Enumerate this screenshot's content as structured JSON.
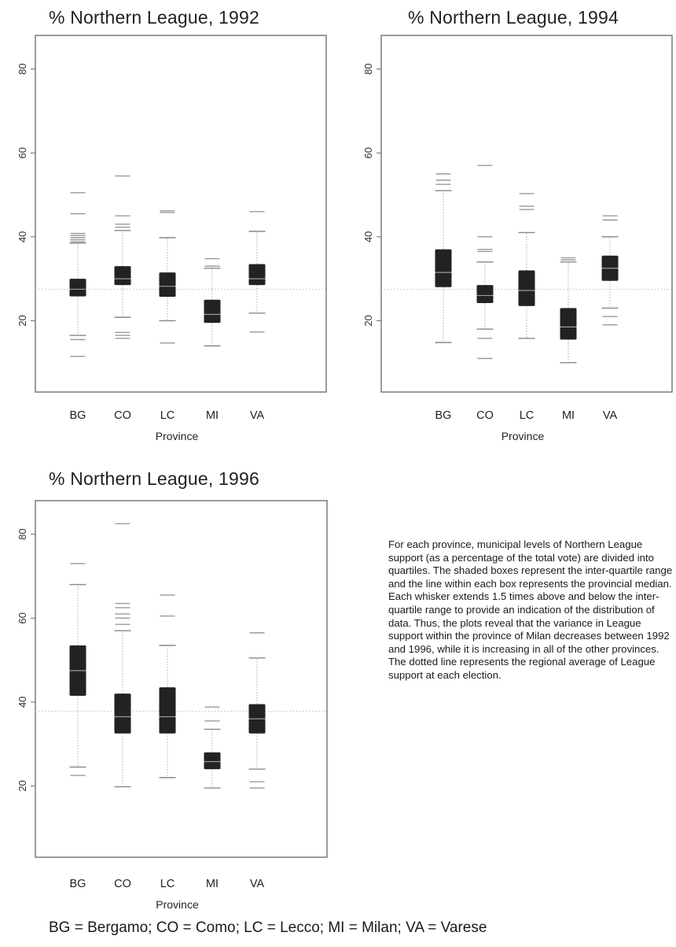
{
  "chart_data": [
    {
      "type": "boxplot",
      "title": "% Northern League, 1992",
      "xlabel": "Province",
      "ylabel": "",
      "ylim": [
        3,
        88
      ],
      "yticks": [
        "20",
        "40",
        "60",
        "80"
      ],
      "regional_average": 27.5,
      "categories": [
        "BG",
        "CO",
        "LC",
        "MI",
        "VA"
      ],
      "boxes": [
        {
          "category": "BG",
          "q1": 25.8,
          "median": 27.5,
          "q3": 30.0,
          "whisker_low": 16.5,
          "whisker_high": 38.5,
          "outliers": [
            11.5,
            15.5,
            38.8,
            39.3,
            39.8,
            40.3,
            40.8,
            45.5,
            50.5
          ]
        },
        {
          "category": "CO",
          "q1": 28.5,
          "median": 30.0,
          "q3": 33.0,
          "whisker_low": 20.8,
          "whisker_high": 41.5,
          "outliers": [
            15.8,
            16.5,
            17.2,
            42.3,
            43.0,
            45.0,
            54.5
          ]
        },
        {
          "category": "LC",
          "q1": 25.7,
          "median": 28.2,
          "q3": 31.5,
          "whisker_low": 20.0,
          "whisker_high": 39.8,
          "outliers": [
            14.7,
            45.8,
            46.2
          ]
        },
        {
          "category": "MI",
          "q1": 19.5,
          "median": 21.5,
          "q3": 25.0,
          "whisker_low": 14.0,
          "whisker_high": 32.5,
          "outliers": [
            33.0,
            34.8
          ]
        },
        {
          "category": "VA",
          "q1": 28.5,
          "median": 30.0,
          "q3": 33.5,
          "whisker_low": 21.8,
          "whisker_high": 41.3,
          "outliers": [
            17.3,
            46.0
          ]
        }
      ]
    },
    {
      "type": "boxplot",
      "title": "% Northern League, 1994",
      "xlabel": "Province",
      "ylabel": "",
      "ylim": [
        3,
        88
      ],
      "yticks": [
        "20",
        "40",
        "60",
        "80"
      ],
      "regional_average": 27.5,
      "categories": [
        "BG",
        "CO",
        "LC",
        "MI",
        "VA"
      ],
      "boxes": [
        {
          "category": "BG",
          "q1": 28.0,
          "median": 31.5,
          "q3": 37.0,
          "whisker_low": 14.8,
          "whisker_high": 51.0,
          "outliers": [
            52.5,
            53.5,
            55.0
          ]
        },
        {
          "category": "CO",
          "q1": 24.2,
          "median": 26.0,
          "q3": 28.5,
          "whisker_low": 18.0,
          "whisker_high": 34.0,
          "outliers": [
            11.0,
            15.8,
            36.5,
            37.0,
            40.0,
            57.0
          ]
        },
        {
          "category": "LC",
          "q1": 23.5,
          "median": 27.2,
          "q3": 32.0,
          "whisker_low": 15.8,
          "whisker_high": 41.0,
          "outliers": [
            46.5,
            47.3,
            50.3
          ]
        },
        {
          "category": "MI",
          "q1": 15.5,
          "median": 18.5,
          "q3": 23.0,
          "whisker_low": 10.0,
          "whisker_high": 34.0,
          "outliers": [
            34.5,
            35.0
          ]
        },
        {
          "category": "VA",
          "q1": 29.5,
          "median": 32.5,
          "q3": 35.5,
          "whisker_low": 23.0,
          "whisker_high": 40.0,
          "outliers": [
            19.0,
            21.0,
            44.0,
            45.0
          ]
        }
      ]
    },
    {
      "type": "boxplot",
      "title": "% Northern League, 1996",
      "xlabel": "Province",
      "ylabel": "",
      "ylim": [
        3,
        88
      ],
      "yticks": [
        "20",
        "40",
        "60",
        "80"
      ],
      "regional_average": 37.8,
      "categories": [
        "BG",
        "CO",
        "LC",
        "MI",
        "VA"
      ],
      "boxes": [
        {
          "category": "BG",
          "q1": 41.5,
          "median": 47.5,
          "q3": 53.5,
          "whisker_low": 24.5,
          "whisker_high": 68.0,
          "outliers": [
            22.5,
            73.0
          ]
        },
        {
          "category": "CO",
          "q1": 32.5,
          "median": 36.5,
          "q3": 42.0,
          "whisker_low": 19.8,
          "whisker_high": 57.0,
          "outliers": [
            58.5,
            60.0,
            61.0,
            62.5,
            63.5,
            82.5
          ]
        },
        {
          "category": "LC",
          "q1": 32.5,
          "median": 36.5,
          "q3": 43.5,
          "whisker_low": 22.0,
          "whisker_high": 53.5,
          "outliers": [
            60.5,
            65.5
          ]
        },
        {
          "category": "MI",
          "q1": 24.0,
          "median": 25.8,
          "q3": 28.0,
          "whisker_low": 19.5,
          "whisker_high": 33.5,
          "outliers": [
            35.5,
            38.8
          ]
        },
        {
          "category": "VA",
          "q1": 32.5,
          "median": 36.0,
          "q3": 39.5,
          "whisker_low": 24.0,
          "whisker_high": 50.5,
          "outliers": [
            19.5,
            21.0,
            56.5
          ]
        }
      ]
    }
  ],
  "caption": "For each province, municipal levels of Northern League support (as a percentage of the total vote) are divided into quartiles. The shaded boxes represent the inter-quartile range and the line within each box represents the provincial median. Each whisker extends 1.5 times above and below the inter-quartile range to provide an indication of the distribution of data. Thus, the plots reveal that the variance in League support within the province of Milan decreases between 1992 and 1996, while it is increasing in all of the other provinces. The dotted line represents the regional average of League support at each election.",
  "legend_line": "BG = Bergamo; CO = Como; LC = Lecco; MI = Milan; VA = Varese",
  "colors": {
    "box": "#222222",
    "median": "#9a9a9a",
    "whisker": "#b0b0b0",
    "outlier": "#9a9a9a",
    "average": "#c8c8c8",
    "frame": "#666666"
  }
}
